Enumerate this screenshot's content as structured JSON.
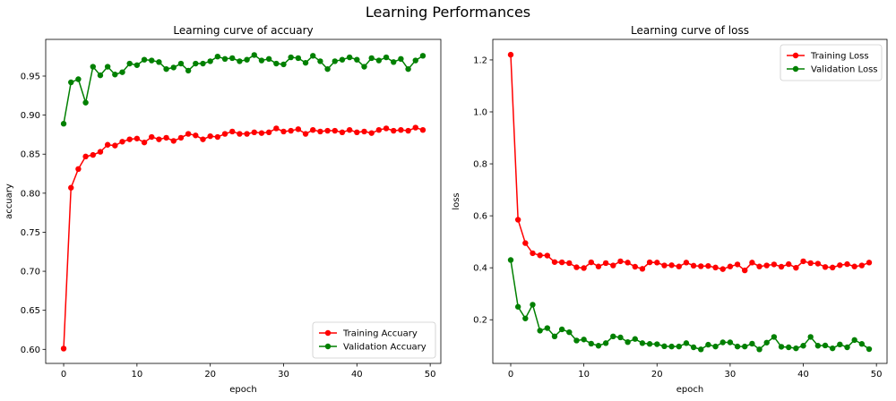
{
  "figure": {
    "title": "Learning Performances"
  },
  "chart_data": [
    {
      "type": "line",
      "title": "Learning curve of accuary",
      "xlabel": "epoch",
      "ylabel": "accuary",
      "xlim": [
        -2.45,
        51.45
      ],
      "ylim": [
        0.582,
        0.997
      ],
      "xticks": [
        0,
        10,
        20,
        30,
        40,
        50
      ],
      "yticks": [
        0.6,
        0.65,
        0.7,
        0.75,
        0.8,
        0.85,
        0.9,
        0.95
      ],
      "ytick_labels": [
        "0.60",
        "0.65",
        "0.70",
        "0.75",
        "0.80",
        "0.85",
        "0.90",
        "0.95"
      ],
      "legend_position": "lower right",
      "x": [
        0,
        1,
        2,
        3,
        4,
        5,
        6,
        7,
        8,
        9,
        10,
        11,
        12,
        13,
        14,
        15,
        16,
        17,
        18,
        19,
        20,
        21,
        22,
        23,
        24,
        25,
        26,
        27,
        28,
        29,
        30,
        31,
        32,
        33,
        34,
        35,
        36,
        37,
        38,
        39,
        40,
        41,
        42,
        43,
        44,
        45,
        46,
        47,
        48,
        49
      ],
      "series": [
        {
          "name": "Training Accuary",
          "color": "#ff0000",
          "values": [
            0.601,
            0.807,
            0.831,
            0.847,
            0.849,
            0.853,
            0.862,
            0.861,
            0.866,
            0.869,
            0.87,
            0.865,
            0.872,
            0.869,
            0.871,
            0.867,
            0.871,
            0.876,
            0.874,
            0.869,
            0.873,
            0.872,
            0.876,
            0.879,
            0.876,
            0.876,
            0.878,
            0.877,
            0.878,
            0.883,
            0.879,
            0.88,
            0.882,
            0.876,
            0.881,
            0.879,
            0.88,
            0.88,
            0.878,
            0.881,
            0.878,
            0.879,
            0.877,
            0.881,
            0.883,
            0.88,
            0.881,
            0.88,
            0.884,
            0.881
          ]
        },
        {
          "name": "Validation Accuary",
          "color": "#008000",
          "values": [
            0.889,
            0.942,
            0.946,
            0.916,
            0.962,
            0.951,
            0.962,
            0.952,
            0.955,
            0.966,
            0.964,
            0.971,
            0.97,
            0.968,
            0.959,
            0.961,
            0.966,
            0.957,
            0.966,
            0.966,
            0.969,
            0.975,
            0.972,
            0.973,
            0.969,
            0.971,
            0.977,
            0.97,
            0.972,
            0.966,
            0.965,
            0.974,
            0.973,
            0.967,
            0.976,
            0.969,
            0.959,
            0.969,
            0.971,
            0.974,
            0.971,
            0.962,
            0.973,
            0.97,
            0.974,
            0.968,
            0.972,
            0.959,
            0.97,
            0.976
          ]
        }
      ]
    },
    {
      "type": "line",
      "title": "Learning curve of loss",
      "xlabel": "epoch",
      "ylabel": "loss",
      "xlim": [
        -2.45,
        51.45
      ],
      "ylim": [
        0.032,
        1.279
      ],
      "xticks": [
        0,
        10,
        20,
        30,
        40,
        50
      ],
      "yticks": [
        0.2,
        0.4,
        0.6,
        0.8,
        1.0,
        1.2
      ],
      "ytick_labels": [
        "0.2",
        "0.4",
        "0.6",
        "0.8",
        "1.0",
        "1.2"
      ],
      "legend_position": "upper right",
      "x": [
        0,
        1,
        2,
        3,
        4,
        5,
        6,
        7,
        8,
        9,
        10,
        11,
        12,
        13,
        14,
        15,
        16,
        17,
        18,
        19,
        20,
        21,
        22,
        23,
        24,
        25,
        26,
        27,
        28,
        29,
        30,
        31,
        32,
        33,
        34,
        35,
        36,
        37,
        38,
        39,
        40,
        41,
        42,
        43,
        44,
        45,
        46,
        47,
        48,
        49
      ],
      "series": [
        {
          "name": "Training Loss",
          "color": "#ff0000",
          "values": [
            1.22,
            0.585,
            0.495,
            0.456,
            0.448,
            0.447,
            0.422,
            0.421,
            0.418,
            0.402,
            0.399,
            0.421,
            0.405,
            0.418,
            0.409,
            0.425,
            0.42,
            0.404,
            0.396,
            0.421,
            0.42,
            0.409,
            0.41,
            0.405,
            0.42,
            0.408,
            0.406,
            0.407,
            0.401,
            0.395,
            0.405,
            0.413,
            0.39,
            0.42,
            0.405,
            0.409,
            0.413,
            0.404,
            0.414,
            0.4,
            0.425,
            0.418,
            0.416,
            0.403,
            0.401,
            0.41,
            0.414,
            0.405,
            0.409,
            0.42
          ]
        },
        {
          "name": "Validation Loss",
          "color": "#008000",
          "values": [
            0.43,
            0.25,
            0.205,
            0.258,
            0.158,
            0.168,
            0.136,
            0.163,
            0.152,
            0.12,
            0.124,
            0.108,
            0.1,
            0.11,
            0.136,
            0.132,
            0.114,
            0.126,
            0.11,
            0.107,
            0.106,
            0.098,
            0.097,
            0.097,
            0.11,
            0.094,
            0.086,
            0.104,
            0.097,
            0.113,
            0.113,
            0.097,
            0.097,
            0.108,
            0.086,
            0.112,
            0.134,
            0.096,
            0.094,
            0.09,
            0.1,
            0.134,
            0.1,
            0.101,
            0.09,
            0.105,
            0.094,
            0.122,
            0.107,
            0.087
          ]
        }
      ]
    }
  ]
}
